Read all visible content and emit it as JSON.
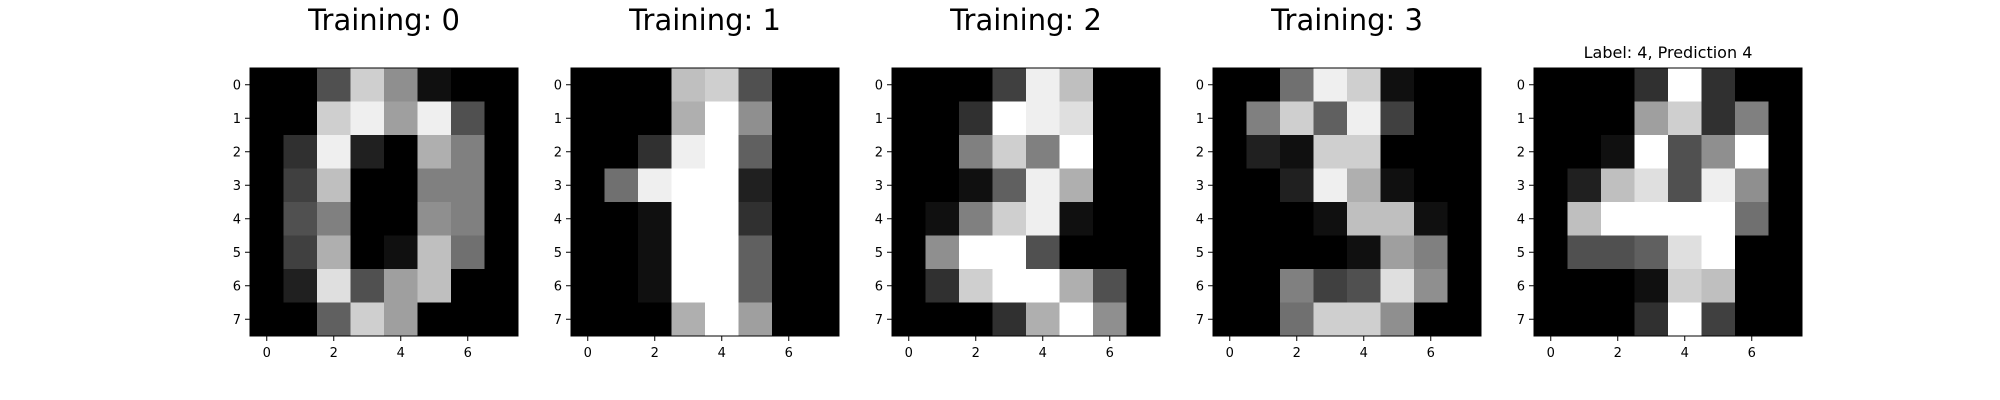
{
  "chart_data": [
    {
      "type": "heatmap",
      "title": "Training: 0",
      "xlabel": "",
      "ylabel": "",
      "colormap": "gray",
      "vmin": 0,
      "vmax": 16,
      "grid": false,
      "x_ticks": [
        0,
        2,
        4,
        6
      ],
      "y_ticks": [
        0,
        1,
        2,
        3,
        4,
        5,
        6,
        7
      ],
      "values": [
        [
          0,
          0,
          5,
          13,
          9,
          1,
          0,
          0
        ],
        [
          0,
          0,
          13,
          15,
          10,
          15,
          5,
          0
        ],
        [
          0,
          3,
          15,
          2,
          0,
          11,
          8,
          0
        ],
        [
          0,
          4,
          12,
          0,
          0,
          8,
          8,
          0
        ],
        [
          0,
          5,
          8,
          0,
          0,
          9,
          8,
          0
        ],
        [
          0,
          4,
          11,
          0,
          1,
          12,
          7,
          0
        ],
        [
          0,
          2,
          14,
          5,
          10,
          12,
          0,
          0
        ],
        [
          0,
          0,
          6,
          13,
          10,
          0,
          0,
          0
        ]
      ]
    },
    {
      "type": "heatmap",
      "title": "Training: 1",
      "xlabel": "",
      "ylabel": "",
      "colormap": "gray",
      "vmin": 0,
      "vmax": 16,
      "grid": false,
      "x_ticks": [
        0,
        2,
        4,
        6
      ],
      "y_ticks": [
        0,
        1,
        2,
        3,
        4,
        5,
        6,
        7
      ],
      "values": [
        [
          0,
          0,
          0,
          12,
          13,
          5,
          0,
          0
        ],
        [
          0,
          0,
          0,
          11,
          16,
          9,
          0,
          0
        ],
        [
          0,
          0,
          3,
          15,
          16,
          6,
          0,
          0
        ],
        [
          0,
          7,
          15,
          16,
          16,
          2,
          0,
          0
        ],
        [
          0,
          0,
          1,
          16,
          16,
          3,
          0,
          0
        ],
        [
          0,
          0,
          1,
          16,
          16,
          6,
          0,
          0
        ],
        [
          0,
          0,
          1,
          16,
          16,
          6,
          0,
          0
        ],
        [
          0,
          0,
          0,
          11,
          16,
          10,
          0,
          0
        ]
      ]
    },
    {
      "type": "heatmap",
      "title": "Training: 2",
      "xlabel": "",
      "ylabel": "",
      "colormap": "gray",
      "vmin": 0,
      "vmax": 16,
      "grid": false,
      "x_ticks": [
        0,
        2,
        4,
        6
      ],
      "y_ticks": [
        0,
        1,
        2,
        3,
        4,
        5,
        6,
        7
      ],
      "values": [
        [
          0,
          0,
          0,
          4,
          15,
          12,
          0,
          0
        ],
        [
          0,
          0,
          3,
          16,
          15,
          14,
          0,
          0
        ],
        [
          0,
          0,
          8,
          13,
          8,
          16,
          0,
          0
        ],
        [
          0,
          0,
          1,
          6,
          15,
          11,
          0,
          0
        ],
        [
          0,
          1,
          8,
          13,
          15,
          1,
          0,
          0
        ],
        [
          0,
          9,
          16,
          16,
          5,
          0,
          0,
          0
        ],
        [
          0,
          3,
          13,
          16,
          16,
          11,
          5,
          0
        ],
        [
          0,
          0,
          0,
          3,
          11,
          16,
          9,
          0
        ]
      ]
    },
    {
      "type": "heatmap",
      "title": "Training: 3",
      "xlabel": "",
      "ylabel": "",
      "colormap": "gray",
      "vmin": 0,
      "vmax": 16,
      "grid": false,
      "x_ticks": [
        0,
        2,
        4,
        6
      ],
      "y_ticks": [
        0,
        1,
        2,
        3,
        4,
        5,
        6,
        7
      ],
      "values": [
        [
          0,
          0,
          7,
          15,
          13,
          1,
          0,
          0
        ],
        [
          0,
          8,
          13,
          6,
          15,
          4,
          0,
          0
        ],
        [
          0,
          2,
          1,
          13,
          13,
          0,
          0,
          0
        ],
        [
          0,
          0,
          2,
          15,
          11,
          1,
          0,
          0
        ],
        [
          0,
          0,
          0,
          1,
          12,
          12,
          1,
          0
        ],
        [
          0,
          0,
          0,
          0,
          1,
          10,
          8,
          0
        ],
        [
          0,
          0,
          8,
          4,
          5,
          14,
          9,
          0
        ],
        [
          0,
          0,
          7,
          13,
          13,
          9,
          0,
          0
        ]
      ]
    },
    {
      "type": "heatmap",
      "title": "Label: 4, Prediction 4",
      "xlabel": "",
      "ylabel": "",
      "colormap": "gray",
      "vmin": 0,
      "vmax": 16,
      "grid": false,
      "x_ticks": [
        0,
        2,
        4,
        6
      ],
      "y_ticks": [
        0,
        1,
        2,
        3,
        4,
        5,
        6,
        7
      ],
      "values": [
        [
          0,
          0,
          0,
          3,
          16,
          3,
          0,
          0
        ],
        [
          0,
          0,
          0,
          10,
          13,
          3,
          8,
          0
        ],
        [
          0,
          0,
          1,
          16,
          5,
          9,
          16,
          0
        ],
        [
          0,
          2,
          12,
          14,
          5,
          15,
          9,
          0
        ],
        [
          0,
          12,
          16,
          16,
          16,
          16,
          7,
          0
        ],
        [
          0,
          5,
          5,
          6,
          14,
          16,
          0,
          0
        ],
        [
          0,
          0,
          0,
          1,
          13,
          12,
          0,
          0
        ],
        [
          0,
          0,
          0,
          3,
          16,
          4,
          0,
          0
        ]
      ]
    }
  ]
}
